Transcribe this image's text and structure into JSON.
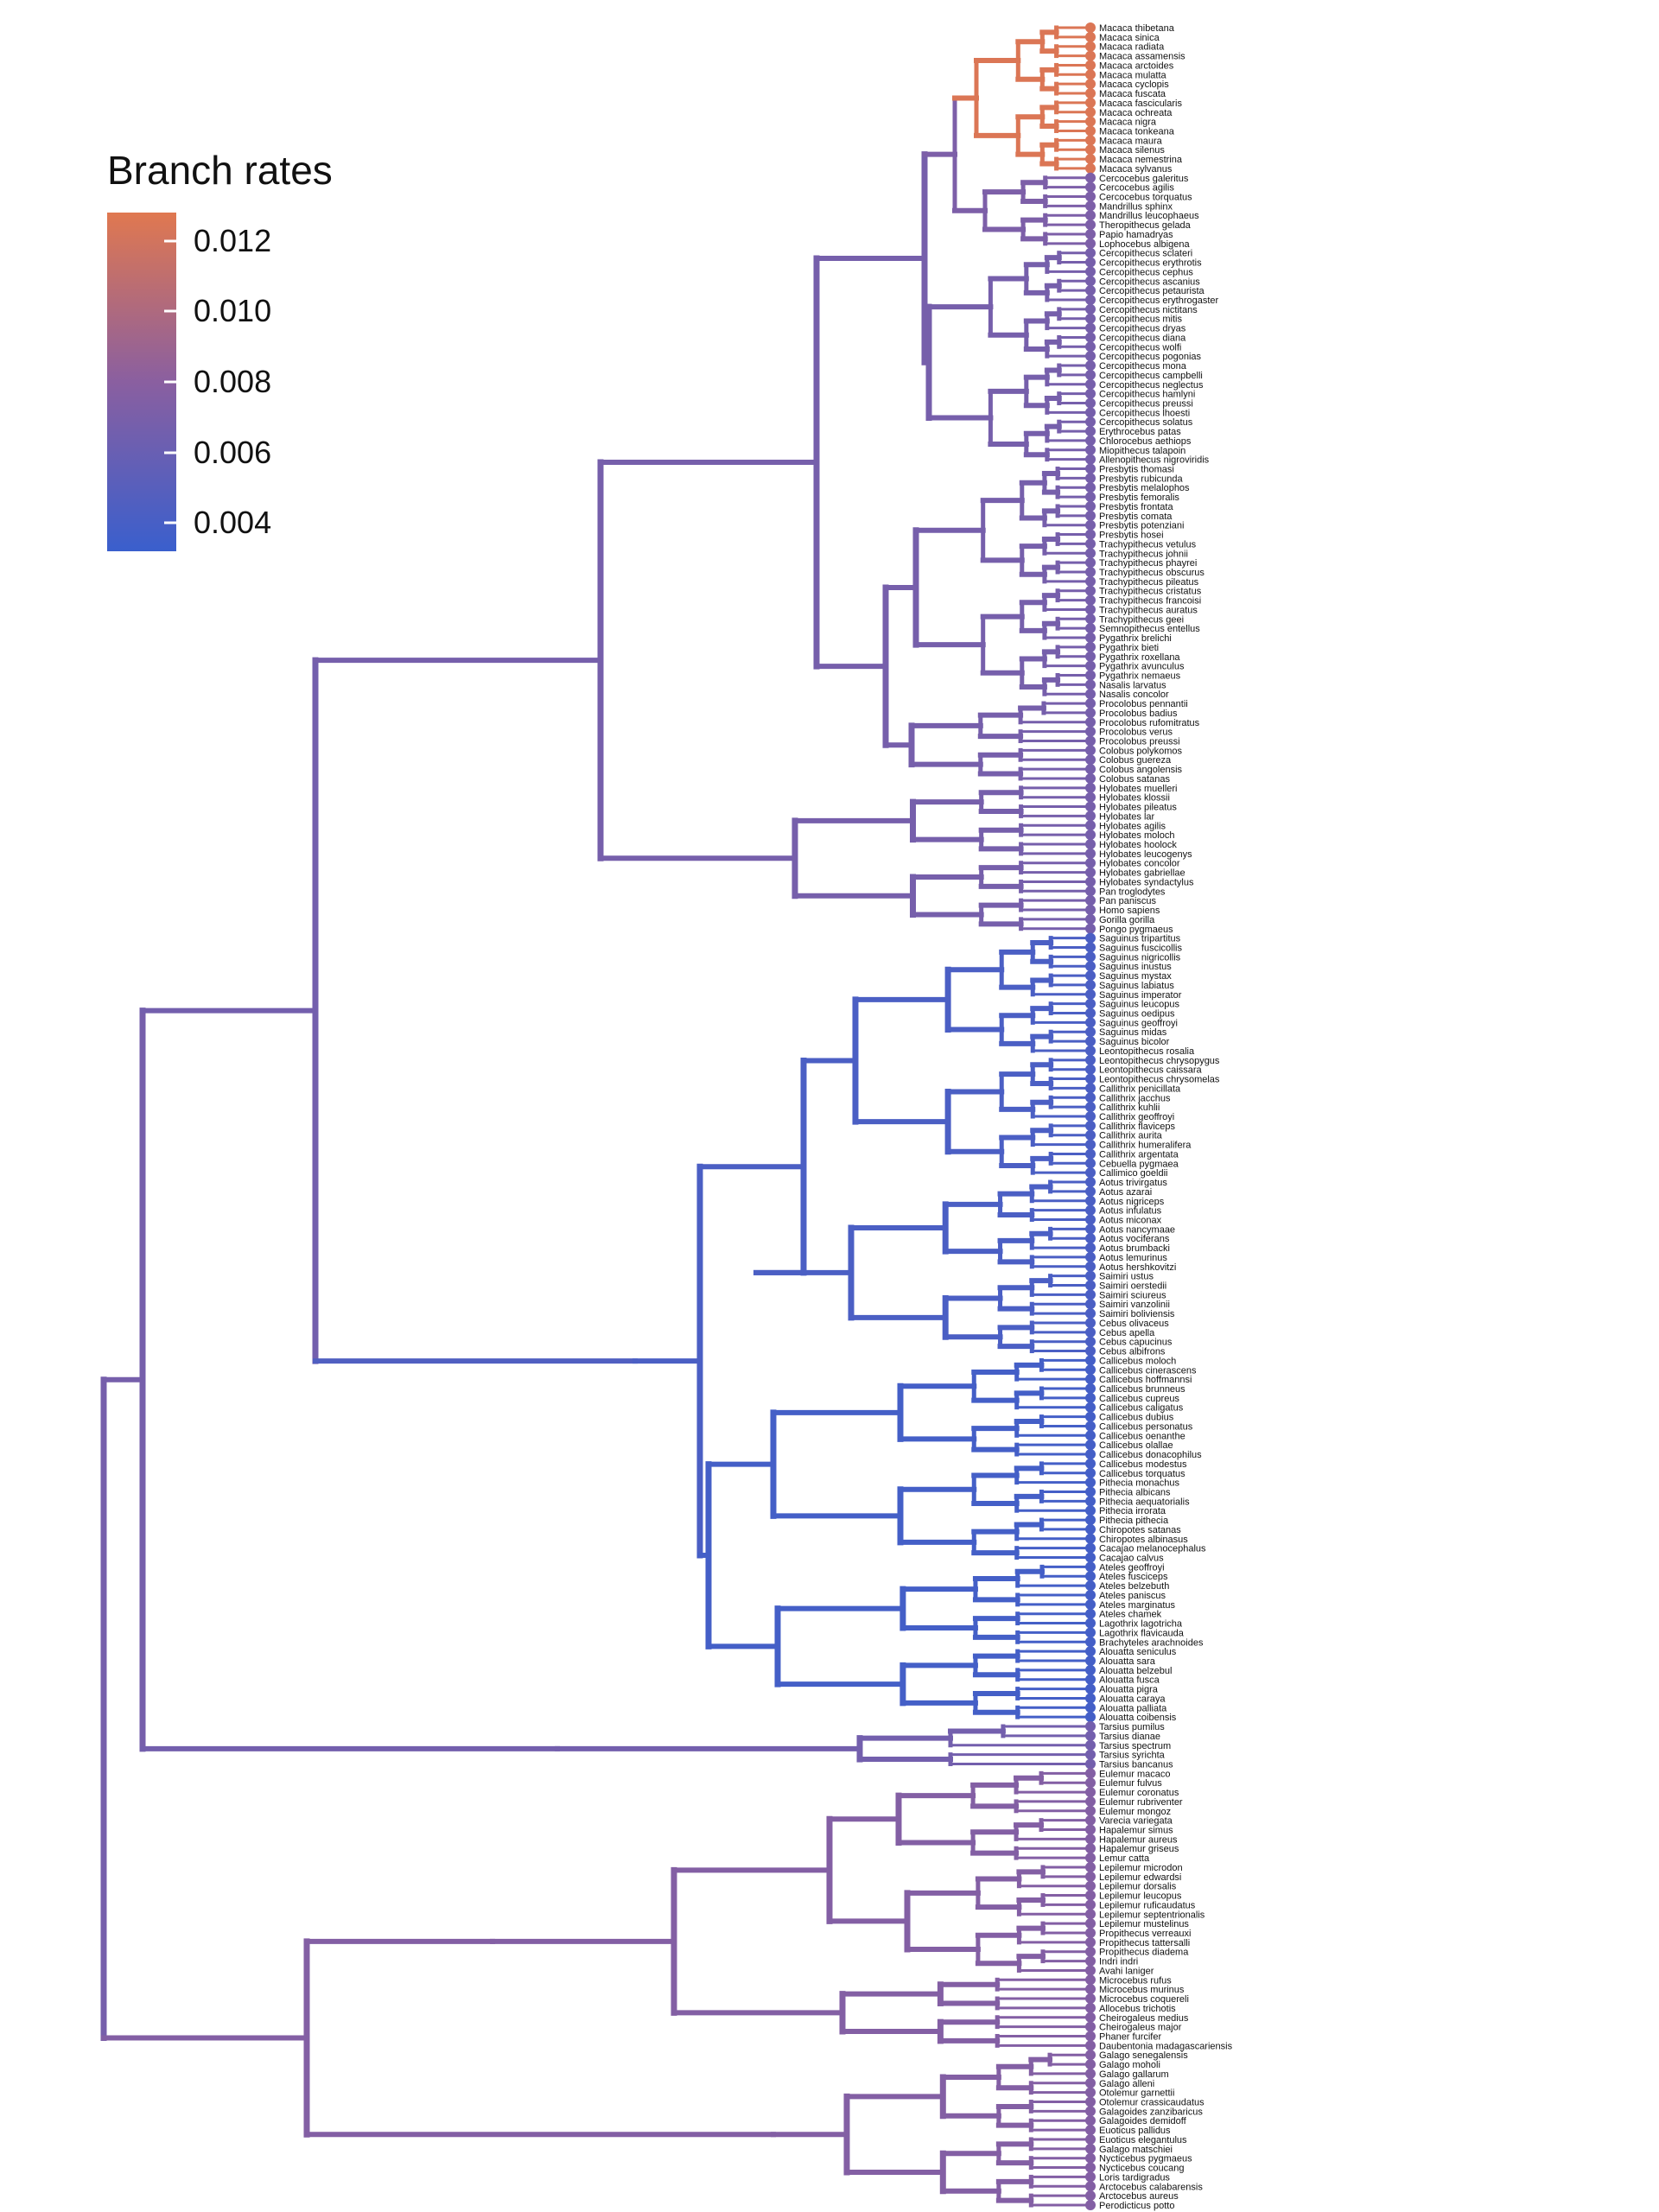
{
  "legend": {
    "title": "Branch rates",
    "ticks": [
      {
        "label": "0.012",
        "value": 0.012
      },
      {
        "label": "0.010",
        "value": 0.01
      },
      {
        "label": "0.008",
        "value": 0.008
      },
      {
        "label": "0.006",
        "value": 0.006
      },
      {
        "label": "0.004",
        "value": 0.004
      }
    ],
    "min": 0.0032,
    "max": 0.0128,
    "colors": {
      "low": "#3A5FCD",
      "mid": "#8A5FA0",
      "high": "#E07850"
    }
  },
  "tree": {
    "type": "phylogram",
    "groups": [
      {
        "id": "macaques",
        "rate": 0.0125,
        "taxa": [
          "Macaca thibetana",
          "Macaca sinica",
          "Macaca radiata",
          "Macaca assamensis",
          "Macaca arctoides",
          "Macaca mulatta",
          "Macaca cyclopis",
          "Macaca fuscata",
          "Macaca fascicularis",
          "Macaca ochreata",
          "Macaca nigra",
          "Macaca tonkeana",
          "Macaca maura",
          "Macaca silenus",
          "Macaca nemestrina",
          "Macaca sylvanus"
        ]
      },
      {
        "id": "papionins",
        "rate": 0.0072,
        "taxa": [
          "Cercocebus galeritus",
          "Cercocebus agilis",
          "Cercocebus torquatus",
          "Mandrillus sphinx",
          "Mandrillus leucophaeus",
          "Theropithecus gelada",
          "Papio hamadryas",
          "Lophocebus albigena"
        ]
      },
      {
        "id": "guenons",
        "rate": 0.0068,
        "taxa": [
          "Cercopithecus sclateri",
          "Cercopithecus erythrotis",
          "Cercopithecus cephus",
          "Cercopithecus ascanius",
          "Cercopithecus petaurista",
          "Cercopithecus erythrogaster",
          "Cercopithecus nictitans",
          "Cercopithecus mitis",
          "Cercopithecus dryas",
          "Cercopithecus diana",
          "Cercopithecus wolfi",
          "Cercopithecus pogonias",
          "Cercopithecus mona",
          "Cercopithecus campbelli",
          "Cercopithecus neglectus",
          "Cercopithecus hamlyni",
          "Cercopithecus preussi",
          "Cercopithecus lhoesti",
          "Cercopithecus solatus",
          "Erythrocebus patas",
          "Chlorocebus aethiops",
          "Miopithecus talapoin",
          "Allenopithecus nigroviridis"
        ]
      },
      {
        "id": "asian-colobines",
        "rate": 0.0068,
        "taxa": [
          "Presbytis thomasi",
          "Presbytis rubicunda",
          "Presbytis melalophos",
          "Presbytis femoralis",
          "Presbytis frontata",
          "Presbytis comata",
          "Presbytis potenziani",
          "Presbytis hosei",
          "Trachypithecus vetulus",
          "Trachypithecus johnii",
          "Trachypithecus phayrei",
          "Trachypithecus obscurus",
          "Trachypithecus pileatus",
          "Trachypithecus cristatus",
          "Trachypithecus francoisi",
          "Trachypithecus auratus",
          "Trachypithecus geei",
          "Semnopithecus entellus",
          "Pygathrix brelichi",
          "Pygathrix bieti",
          "Pygathrix roxellana",
          "Pygathrix avunculus",
          "Pygathrix nemaeus",
          "Nasalis larvatus",
          "Nasalis concolor"
        ]
      },
      {
        "id": "african-colobines",
        "rate": 0.0068,
        "taxa": [
          "Procolobus pennantii",
          "Procolobus badius",
          "Procolobus rufomitratus",
          "Procolobus verus",
          "Procolobus preussi",
          "Colobus polykomos",
          "Colobus guereza",
          "Colobus angolensis",
          "Colobus satanas"
        ]
      },
      {
        "id": "hominoids",
        "rate": 0.0068,
        "taxa": [
          "Hylobates muelleri",
          "Hylobates klossii",
          "Hylobates pileatus",
          "Hylobates lar",
          "Hylobates agilis",
          "Hylobates moloch",
          "Hylobates hoolock",
          "Hylobates leucogenys",
          "Hylobates concolor",
          "Hylobates gabriellae",
          "Hylobates syndactylus",
          "Pan troglodytes",
          "Pan paniscus",
          "Homo sapiens",
          "Gorilla gorilla",
          "Pongo pygmaeus"
        ]
      },
      {
        "id": "callitrichids",
        "rate": 0.0042,
        "taxa": [
          "Saguinus tripartitus",
          "Saguinus fuscicollis",
          "Saguinus nigricollis",
          "Saguinus inustus",
          "Saguinus mystax",
          "Saguinus labiatus",
          "Saguinus imperator",
          "Saguinus leucopus",
          "Saguinus oedipus",
          "Saguinus geoffroyi",
          "Saguinus midas",
          "Saguinus bicolor",
          "Leontopithecus rosalia",
          "Leontopithecus chrysopygus",
          "Leontopithecus caissara",
          "Leontopithecus chrysomelas",
          "Callithrix penicillata",
          "Callithrix jacchus",
          "Callithrix kuhlii",
          "Callithrix geoffroyi",
          "Callithrix flaviceps",
          "Callithrix aurita",
          "Callithrix humeralifera",
          "Callithrix argentata",
          "Cebuella pygmaea",
          "Callimico goeldii"
        ]
      },
      {
        "id": "aotus-cebids",
        "rate": 0.0042,
        "taxa": [
          "Aotus trivirgatus",
          "Aotus azarai",
          "Aotus nigriceps",
          "Aotus infulatus",
          "Aotus miconax",
          "Aotus nancymaae",
          "Aotus vociferans",
          "Aotus brumbacki",
          "Aotus lemurinus",
          "Aotus hershkovitzi",
          "Saimiri ustus",
          "Saimiri oerstedii",
          "Saimiri sciureus",
          "Saimiri vanzolinii",
          "Saimiri boliviensis",
          "Cebus olivaceus",
          "Cebus apella",
          "Cebus capucinus",
          "Cebus albifrons"
        ]
      },
      {
        "id": "pitheciids",
        "rate": 0.0038,
        "taxa": [
          "Callicebus moloch",
          "Callicebus cinerascens",
          "Callicebus hoffmannsi",
          "Callicebus brunneus",
          "Callicebus cupreus",
          "Callicebus caligatus",
          "Callicebus dubius",
          "Callicebus personatus",
          "Callicebus oenanthe",
          "Callicebus olallae",
          "Callicebus donacophilus",
          "Callicebus modestus",
          "Callicebus torquatus",
          "Pithecia monachus",
          "Pithecia albicans",
          "Pithecia aequatorialis",
          "Pithecia irrorata",
          "Pithecia pithecia",
          "Chiropotes satanas",
          "Chiropotes albinasus",
          "Cacajao melanocephalus",
          "Cacajao calvus"
        ]
      },
      {
        "id": "atelids",
        "rate": 0.0038,
        "taxa": [
          "Ateles geoffroyi",
          "Ateles fusciceps",
          "Ateles belzebuth",
          "Ateles paniscus",
          "Ateles marginatus",
          "Ateles chamek",
          "Lagothrix lagotricha",
          "Lagothrix flavicauda",
          "Brachyteles arachnoides",
          "Alouatta seniculus",
          "Alouatta sara",
          "Alouatta belzebul",
          "Alouatta fusca",
          "Alouatta pigra",
          "Alouatta caraya",
          "Alouatta palliata",
          "Alouatta coibensis"
        ]
      },
      {
        "id": "tarsiers",
        "rate": 0.0066,
        "taxa": [
          "Tarsius pumilus",
          "Tarsius dianae",
          "Tarsius spectrum",
          "Tarsius syrichta",
          "Tarsius bancanus"
        ]
      },
      {
        "id": "lemurids",
        "rate": 0.0076,
        "taxa": [
          "Eulemur macaco",
          "Eulemur fulvus",
          "Eulemur coronatus",
          "Eulemur rubriventer",
          "Eulemur mongoz",
          "Varecia variegata",
          "Hapalemur simus",
          "Hapalemur aureus",
          "Hapalemur griseus",
          "Lemur catta"
        ]
      },
      {
        "id": "lepilemurs-indriids",
        "rate": 0.0076,
        "taxa": [
          "Lepilemur microdon",
          "Lepilemur edwardsi",
          "Lepilemur dorsalis",
          "Lepilemur leucopus",
          "Lepilemur ruficaudatus",
          "Lepilemur septentrionalis",
          "Lepilemur mustelinus",
          "Propithecus verreauxi",
          "Propithecus tattersalli",
          "Propithecus diadema",
          "Indri indri",
          "Avahi laniger"
        ]
      },
      {
        "id": "cheirogaleids",
        "rate": 0.0076,
        "taxa": [
          "Microcebus rufus",
          "Microcebus murinus",
          "Microcebus coquereli",
          "Allocebus trichotis",
          "Cheirogaleus medius",
          "Cheirogaleus major",
          "Phaner furcifer",
          "Daubentonia madagascariensis"
        ]
      },
      {
        "id": "lorisiforms",
        "rate": 0.0076,
        "taxa": [
          "Galago senegalensis",
          "Galago moholi",
          "Galago gallarum",
          "Galago alleni",
          "Otolemur garnettii",
          "Otolemur crassicaudatus",
          "Galagoides zanzibaricus",
          "Galagoides demidoff",
          "Euoticus pallidus",
          "Euoticus elegantulus",
          "Galago matschiei",
          "Nycticebus pygmaeus",
          "Nycticebus coucang",
          "Loris tardigradus",
          "Arctocebus calabarensis",
          "Arctocebus aureus",
          "Perodicticus potto"
        ]
      }
    ]
  }
}
